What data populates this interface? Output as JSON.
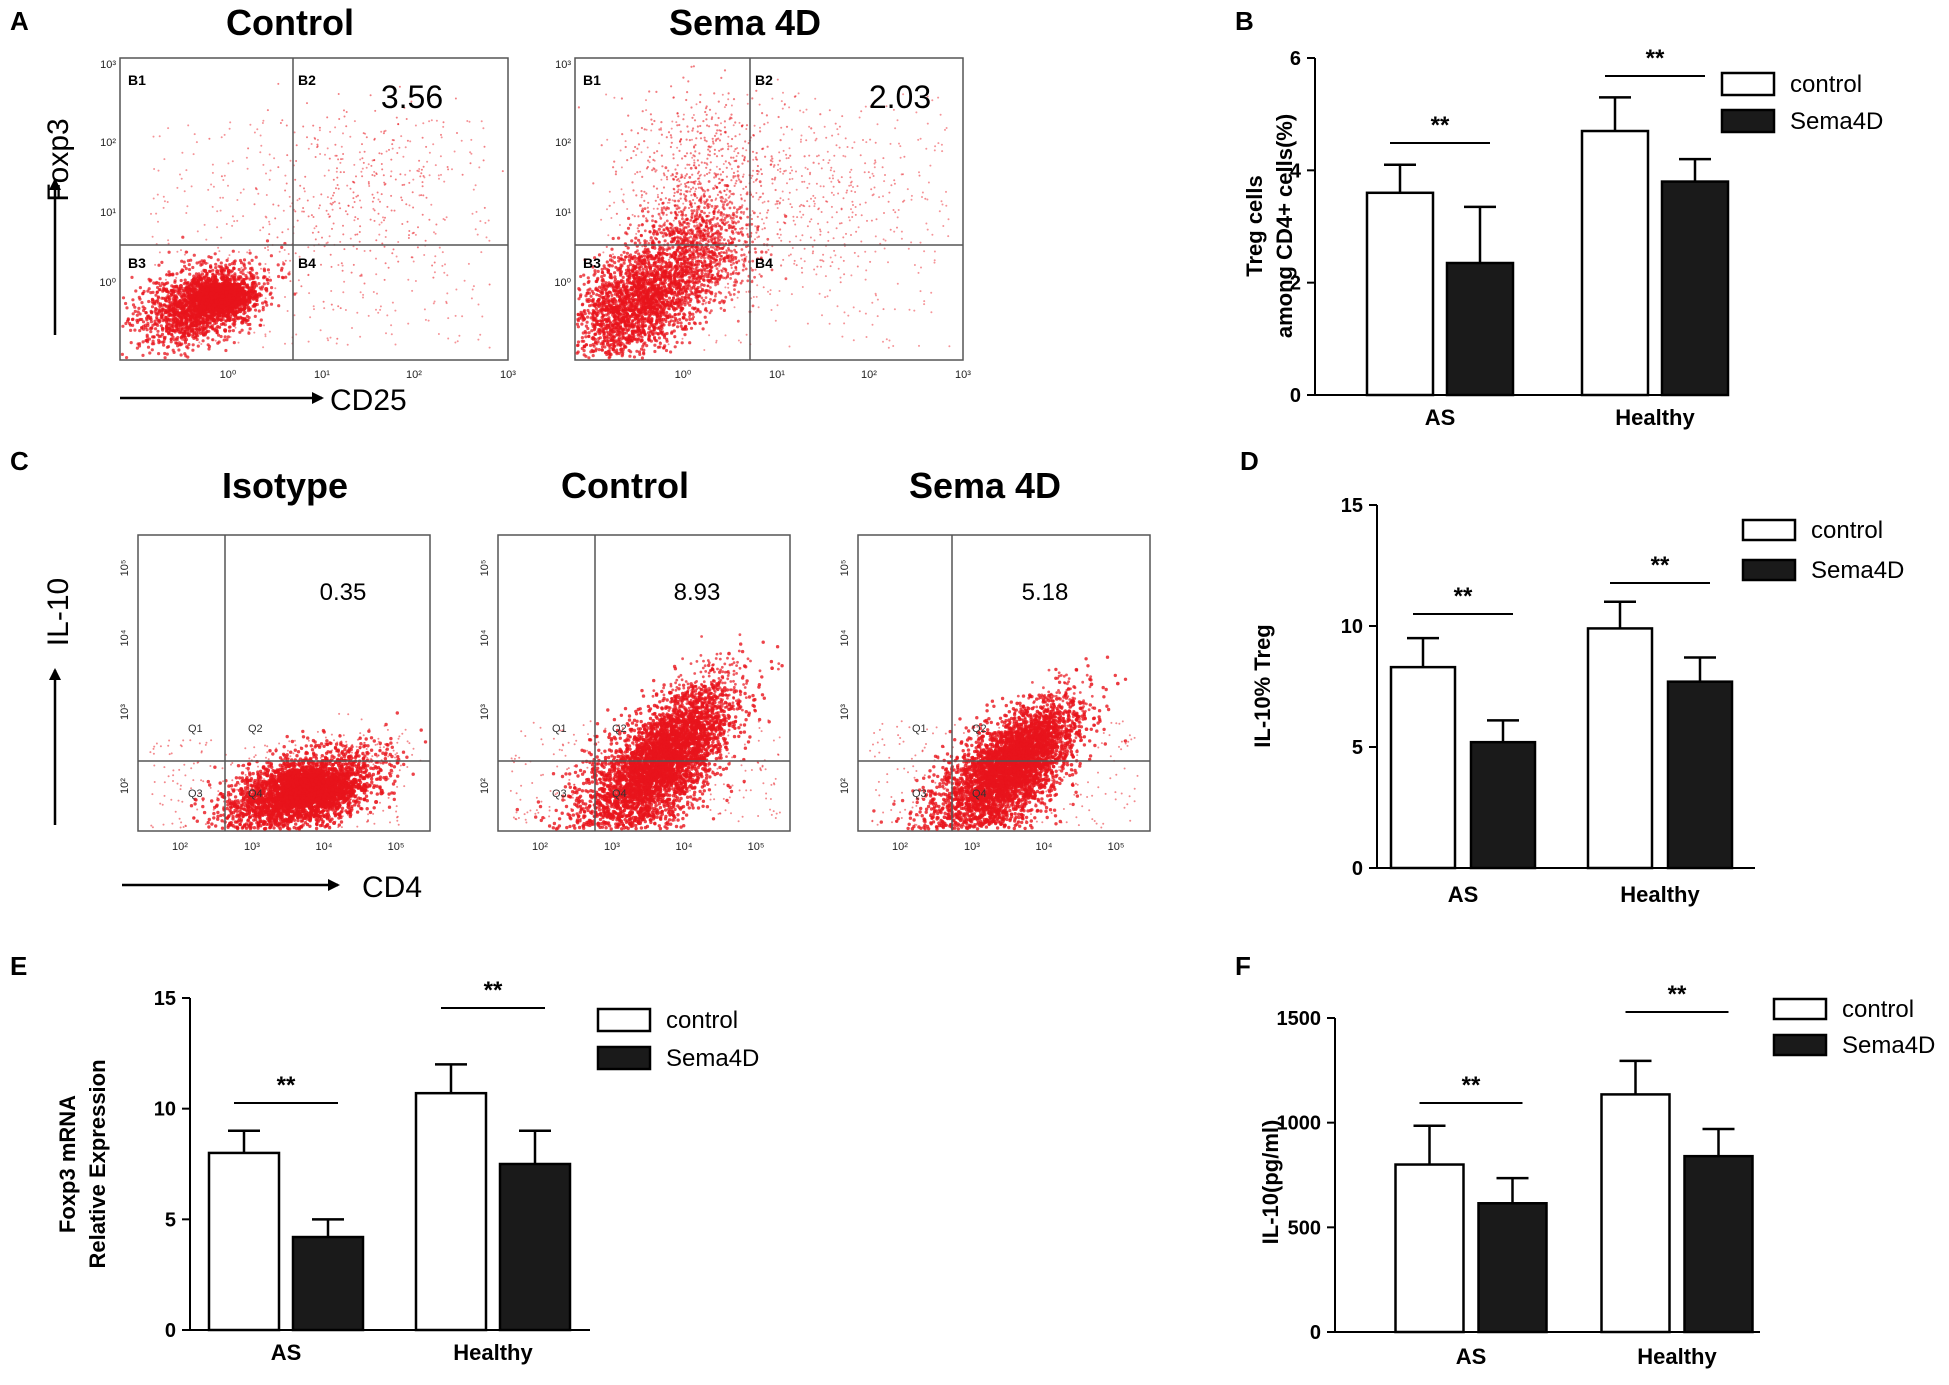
{
  "panel_labels": {
    "A": "A",
    "B": "B",
    "C": "C",
    "D": "D",
    "E": "E",
    "F": "F"
  },
  "flow_a": {
    "x_axis": "CD25",
    "y_axis": "Foxp3",
    "x_ticks": [
      "10⁰",
      "10¹",
      "10²",
      "10³"
    ],
    "y_ticks": [
      "10³",
      "10²",
      "10¹",
      "10⁰"
    ],
    "quadrants": [
      "B1",
      "B2",
      "B3",
      "B4"
    ],
    "plots": [
      {
        "title": "Control",
        "value": "3.56",
        "color": "#e8141c",
        "density": "low"
      },
      {
        "title": "Sema 4D",
        "value": "2.03",
        "color": "#e8141c",
        "density": "high"
      }
    ]
  },
  "flow_c": {
    "x_axis": "CD4",
    "y_axis": "IL-10",
    "x_ticks": [
      "10²",
      "10³",
      "10⁴",
      "10⁵"
    ],
    "y_ticks": [
      "10⁵",
      "10⁴",
      "10³",
      "10²"
    ],
    "quadrants": [
      "Q1",
      "Q2",
      "Q3",
      "Q4"
    ],
    "plots": [
      {
        "title": "Isotype",
        "value": "0.35",
        "color": "#e8141c"
      },
      {
        "title": "Control",
        "value": "8.93",
        "color": "#e8141c"
      },
      {
        "title": "Sema 4D",
        "value": "5.18",
        "color": "#e8141c"
      }
    ]
  },
  "chart_data": [
    {
      "panel": "B",
      "type": "bar",
      "categories": [
        "AS",
        "Healthy"
      ],
      "ylabel_lines": [
        "Treg cells",
        "among CD4+ cells(%)"
      ],
      "ylim": [
        0,
        6
      ],
      "yticks": [
        0,
        2,
        4,
        6
      ],
      "legend": [
        "control",
        "Sema4D"
      ],
      "series": [
        {
          "name": "control",
          "values": [
            3.6,
            4.7
          ],
          "errors": [
            0.5,
            0.6
          ]
        },
        {
          "name": "Sema4D",
          "values": [
            2.35,
            3.8
          ],
          "errors": [
            1.0,
            0.4
          ]
        }
      ],
      "significance": [
        "**",
        "**"
      ]
    },
    {
      "panel": "D",
      "type": "bar",
      "categories": [
        "AS",
        "Healthy"
      ],
      "ylabel_lines": [
        "IL-10% Treg"
      ],
      "ylim": [
        0,
        15
      ],
      "yticks": [
        0,
        5,
        10,
        15
      ],
      "legend": [
        "control",
        "Sema4D"
      ],
      "series": [
        {
          "name": "control",
          "values": [
            8.3,
            9.9
          ],
          "errors": [
            1.2,
            1.1
          ]
        },
        {
          "name": "Sema4D",
          "values": [
            5.2,
            7.7
          ],
          "errors": [
            0.9,
            1.0
          ]
        }
      ],
      "significance": [
        "**",
        "**"
      ]
    },
    {
      "panel": "E",
      "type": "bar",
      "categories": [
        "AS",
        "Healthy"
      ],
      "ylabel_lines": [
        "Foxp3 mRNA",
        "Relative Expression"
      ],
      "ylim": [
        0,
        15
      ],
      "yticks": [
        0,
        5,
        10,
        15
      ],
      "legend": [
        "control",
        "Sema4D"
      ],
      "series": [
        {
          "name": "control",
          "values": [
            8.0,
            10.7
          ],
          "errors": [
            1.0,
            1.3
          ]
        },
        {
          "name": "Sema4D",
          "values": [
            4.2,
            7.5
          ],
          "errors": [
            0.8,
            1.5
          ]
        }
      ],
      "significance": [
        "**",
        "**"
      ]
    },
    {
      "panel": "F",
      "type": "bar",
      "categories": [
        "AS",
        "Healthy"
      ],
      "ylabel_lines": [
        "IL-10(pg/ml)"
      ],
      "ylim": [
        0,
        1500
      ],
      "yticks": [
        0,
        500,
        1000,
        1500
      ],
      "legend": [
        "control",
        "Sema4D"
      ],
      "series": [
        {
          "name": "control",
          "values": [
            800,
            1135
          ],
          "errors": [
            185,
            160
          ]
        },
        {
          "name": "Sema4D",
          "values": [
            615,
            840
          ],
          "errors": [
            120,
            130
          ]
        }
      ],
      "significance": [
        "**",
        "**"
      ]
    }
  ]
}
